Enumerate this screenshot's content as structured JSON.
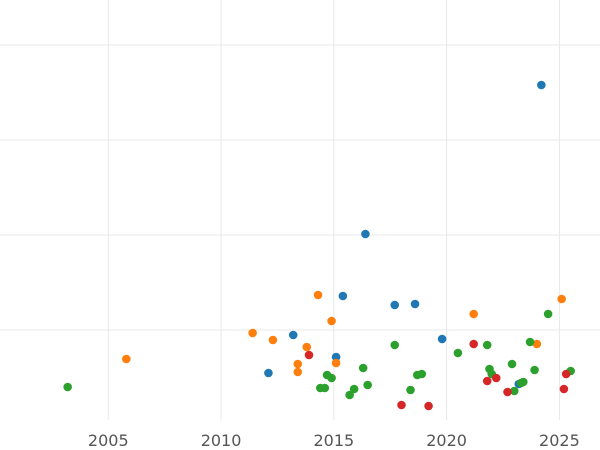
{
  "chart_data": {
    "type": "scatter",
    "title": "",
    "xlabel": "",
    "ylabel": "",
    "xlim": [
      2000.2,
      2026.8
    ],
    "ylim": [
      0,
      420
    ],
    "x_ticks": [
      2005,
      2010,
      2015,
      2020,
      2025
    ],
    "x_tick_labels": [
      "2005",
      "2010",
      "2015",
      "2020",
      "2025"
    ],
    "y_gridlines": [
      90,
      185,
      280,
      375
    ],
    "grid": true,
    "legend": "none",
    "series": [
      {
        "color": "#1f77b4",
        "points": [
          [
            2012.1,
            47
          ],
          [
            2013.2,
            85
          ],
          [
            2015.1,
            63
          ],
          [
            2015.4,
            124
          ],
          [
            2016.4,
            186
          ],
          [
            2017.7,
            115
          ],
          [
            2018.6,
            116
          ],
          [
            2019.8,
            81
          ],
          [
            2023.2,
            36
          ],
          [
            2024.2,
            335
          ]
        ]
      },
      {
        "color": "#ff7f0e",
        "points": [
          [
            2005.8,
            61
          ],
          [
            2011.4,
            87
          ],
          [
            2012.3,
            80
          ],
          [
            2013.4,
            48
          ],
          [
            2013.4,
            56
          ],
          [
            2013.8,
            73
          ],
          [
            2014.3,
            125
          ],
          [
            2014.9,
            99
          ],
          [
            2015.1,
            57
          ],
          [
            2021.2,
            106
          ],
          [
            2024.0,
            76
          ],
          [
            2025.1,
            121
          ]
        ]
      },
      {
        "color": "#2ca02c",
        "points": [
          [
            2003.2,
            33
          ],
          [
            2014.4,
            32
          ],
          [
            2014.6,
            32
          ],
          [
            2014.7,
            45
          ],
          [
            2014.9,
            42
          ],
          [
            2015.7,
            25
          ],
          [
            2015.9,
            31
          ],
          [
            2016.3,
            52
          ],
          [
            2016.5,
            35
          ],
          [
            2017.7,
            75
          ],
          [
            2018.4,
            30
          ],
          [
            2018.7,
            45
          ],
          [
            2018.9,
            46
          ],
          [
            2020.5,
            67
          ],
          [
            2021.8,
            75
          ],
          [
            2021.9,
            51
          ],
          [
            2022.0,
            46
          ],
          [
            2022.9,
            56
          ],
          [
            2023.0,
            29
          ],
          [
            2023.3,
            37
          ],
          [
            2023.4,
            38
          ],
          [
            2023.7,
            78
          ],
          [
            2023.9,
            50
          ],
          [
            2024.5,
            106
          ],
          [
            2025.5,
            49
          ]
        ]
      },
      {
        "color": "#d62728",
        "points": [
          [
            2013.9,
            65
          ],
          [
            2018.0,
            15
          ],
          [
            2019.2,
            14
          ],
          [
            2021.2,
            76
          ],
          [
            2021.8,
            39
          ],
          [
            2022.2,
            42
          ],
          [
            2022.7,
            28
          ],
          [
            2025.2,
            31
          ],
          [
            2025.3,
            46
          ]
        ]
      }
    ]
  }
}
